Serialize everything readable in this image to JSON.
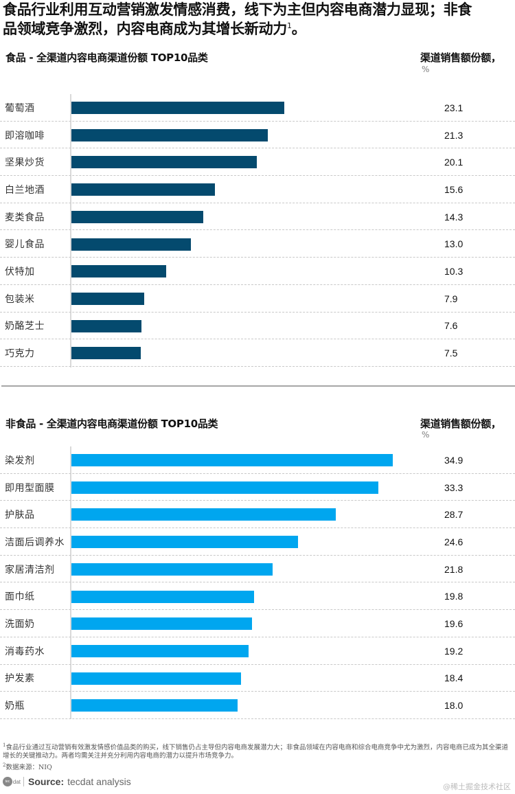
{
  "title": {
    "line1": "食品行业利用互动营销激发情感消费，线下为主但内容电商潜力显现；非食",
    "line2": "品领域竞争激烈，内容电商成为其增长新动力",
    "sup": "1",
    "end": "。"
  },
  "sections": [
    {
      "title": "食品 - 全渠道内容电商渠道份额 TOP10品类",
      "unit_label": "渠道销售额份额，",
      "unit_pct": "%",
      "bar_color": "#044a6e",
      "rows": [
        {
          "label": "葡萄酒",
          "value": "23.1"
        },
        {
          "label": "即溶咖啡",
          "value": "21.3"
        },
        {
          "label": "坚果炒货",
          "value": "20.1"
        },
        {
          "label": "白兰地酒",
          "value": "15.6"
        },
        {
          "label": "麦类食品",
          "value": "14.3"
        },
        {
          "label": "婴儿食品",
          "value": "13.0"
        },
        {
          "label": "伏特加",
          "value": "10.3"
        },
        {
          "label": "包装米",
          "value": "7.9"
        },
        {
          "label": "奶酪芝士",
          "value": "7.6"
        },
        {
          "label": "巧克力",
          "value": "7.5"
        }
      ]
    },
    {
      "title": "非食品 - 全渠道内容电商渠道份额 TOP10品类",
      "unit_label": "渠道销售额份额，",
      "unit_pct": "%",
      "bar_color": "#00a6ef",
      "rows": [
        {
          "label": "染发剂",
          "value": "34.9"
        },
        {
          "label": "即用型面膜",
          "value": "33.3"
        },
        {
          "label": "护肤品",
          "value": "28.7"
        },
        {
          "label": "洁面后调养水",
          "value": "24.6"
        },
        {
          "label": "家居清洁剂",
          "value": "21.8"
        },
        {
          "label": "面巾纸",
          "value": "19.8"
        },
        {
          "label": "洗面奶",
          "value": "19.6"
        },
        {
          "label": "消毒药水",
          "value": "19.2"
        },
        {
          "label": "护发素",
          "value": "18.4"
        },
        {
          "label": "奶瓶",
          "value": "18.0"
        }
      ]
    }
  ],
  "footnotes": {
    "note1_sup": "1",
    "note1": "食品行业通过互动营销有效激发情感价值品类的购买，线下销售仍占主导但内容电商发展潜力大；非食品领域在内容电商和综合电商竞争中尤为激烈，内容电商已成为其全渠道增长的关键推动力。两者均需关注并充分利用内容电商的潜力以提升市场竞争力。",
    "note2_sup": "2",
    "note2": "数据来源：NIQ"
  },
  "source": {
    "logo_text": "tecdat",
    "label": "Source:",
    "text": "tecdat analysis"
  },
  "watermark": "@稀土掘金技术社区",
  "chart_data": [
    {
      "type": "bar",
      "orientation": "horizontal",
      "title": "食品 - 全渠道内容电商渠道份额 TOP10品类",
      "xlabel": "渠道销售额份额，%",
      "ylabel": "",
      "categories": [
        "葡萄酒",
        "即溶咖啡",
        "坚果炒货",
        "白兰地酒",
        "麦类食品",
        "婴儿食品",
        "伏特加",
        "包装米",
        "奶酪芝士",
        "巧克力"
      ],
      "values": [
        23.1,
        21.3,
        20.1,
        15.6,
        14.3,
        13.0,
        10.3,
        7.9,
        7.6,
        7.5
      ],
      "color": "#044a6e",
      "grid": "dashed row separators",
      "legend": "none"
    },
    {
      "type": "bar",
      "orientation": "horizontal",
      "title": "非食品 - 全渠道内容电商渠道份额 TOP10品类",
      "xlabel": "渠道销售额份额，%",
      "ylabel": "",
      "categories": [
        "染发剂",
        "即用型面膜",
        "护肤品",
        "洁面后调养水",
        "家居清洁剂",
        "面巾纸",
        "洗面奶",
        "消毒药水",
        "护发素",
        "奶瓶"
      ],
      "values": [
        34.9,
        33.3,
        28.7,
        24.6,
        21.8,
        19.8,
        19.6,
        19.2,
        18.4,
        18.0
      ],
      "color": "#00a6ef",
      "grid": "dashed row separators",
      "legend": "none"
    }
  ]
}
